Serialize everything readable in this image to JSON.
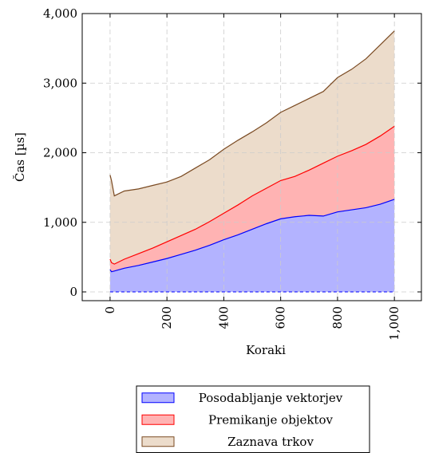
{
  "chart_data": {
    "type": "stacked_area",
    "x_label": "Koraki",
    "y_label": "Čas [µs]",
    "x": [
      0,
      5,
      15,
      50,
      100,
      150,
      200,
      250,
      300,
      350,
      400,
      450,
      500,
      550,
      600,
      650,
      700,
      750,
      800,
      850,
      900,
      950,
      1000
    ],
    "series": [
      {
        "name": "Posodabljanje vektorjev",
        "color": "#0000ff",
        "fill": "#b3b3ff",
        "values": [
          320,
          290,
          300,
          340,
          380,
          430,
          480,
          540,
          600,
          670,
          750,
          820,
          900,
          980,
          1050,
          1080,
          1100,
          1090,
          1150,
          1180,
          1210,
          1260,
          1330
        ]
      },
      {
        "name": "Premikanje objektov",
        "color": "#ff0000",
        "fill": "#ffb3b3",
        "values": [
          150,
          130,
          100,
          130,
          170,
          200,
          240,
          270,
          300,
          340,
          380,
          430,
          480,
          510,
          550,
          580,
          650,
          760,
          800,
          850,
          910,
          980,
          1050
        ]
      },
      {
        "name": "Zaznava trkov",
        "color": "#7a4a22",
        "fill": "#ecdccb",
        "values": [
          1210,
          1180,
          980,
          980,
          930,
          900,
          860,
          850,
          880,
          890,
          920,
          930,
          920,
          940,
          980,
          1020,
          1030,
          1030,
          1130,
          1170,
          1230,
          1310,
          1370
        ]
      }
    ],
    "xlim": [
      -98,
      1095
    ],
    "ylim": [
      -126,
      4000
    ],
    "xticks": [
      0,
      200,
      400,
      600,
      800,
      {
        "value": 1000,
        "label": "1,000"
      }
    ],
    "yticks": [
      0,
      {
        "value": 1000,
        "label": "1,000"
      },
      {
        "value": 2000,
        "label": "2,000"
      },
      {
        "value": 3000,
        "label": "3,000"
      },
      {
        "value": 4000,
        "label": "4,000"
      }
    ],
    "grid": true,
    "legend": "below"
  }
}
